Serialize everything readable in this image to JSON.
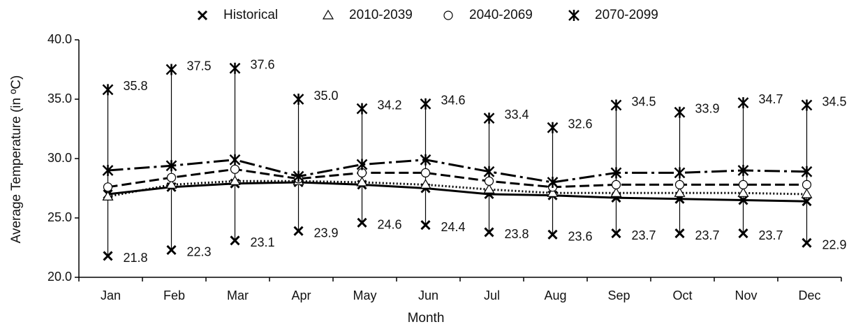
{
  "chart_data": {
    "type": "line",
    "x_label": "Month",
    "y_label": "Average Temperature (in ºC)",
    "categories": [
      "Jan",
      "Feb",
      "Mar",
      "Apr",
      "May",
      "Jun",
      "Jul",
      "Aug",
      "Sep",
      "Oct",
      "Nov",
      "Dec"
    ],
    "series": [
      {
        "name": "Historical",
        "color": "#000000",
        "marker": "x",
        "dash": "solid",
        "values": [
          27.0,
          27.6,
          27.9,
          28.0,
          27.8,
          27.5,
          27.0,
          26.9,
          26.7,
          26.6,
          26.5,
          26.4
        ]
      },
      {
        "name": "2010-2039",
        "color": "#000000",
        "marker": "triangle",
        "dash": "dotted",
        "values": [
          26.8,
          27.8,
          28.1,
          28.1,
          28.0,
          27.8,
          27.4,
          27.1,
          27.1,
          27.1,
          27.1,
          27.0
        ]
      },
      {
        "name": "2040-2069",
        "color": "#000000",
        "marker": "circle",
        "dash": "dashed",
        "values": [
          27.6,
          28.4,
          29.1,
          28.3,
          28.8,
          28.8,
          28.1,
          27.6,
          27.8,
          27.8,
          27.8,
          27.8
        ]
      },
      {
        "name": "2070-2099",
        "color": "#000000",
        "marker": "asterisk",
        "dash": "dashdot",
        "values": [
          29.0,
          29.4,
          29.9,
          28.5,
          29.5,
          29.9,
          28.9,
          28.0,
          28.8,
          28.8,
          29.0,
          28.9
        ]
      }
    ],
    "max": [
      35.8,
      37.5,
      37.6,
      35.0,
      34.2,
      34.6,
      33.4,
      32.6,
      34.5,
      33.9,
      34.7,
      34.5
    ],
    "max_labels": [
      "35.8",
      "37.5",
      "37.6",
      "35.0",
      "34.2",
      "34.6",
      "33.4",
      "32.6",
      "34.5",
      "33.9",
      "34.7",
      "34.5"
    ],
    "min": [
      21.8,
      22.3,
      23.1,
      23.9,
      24.6,
      24.4,
      23.8,
      23.6,
      23.7,
      23.7,
      23.7,
      22.9
    ],
    "min_labels": [
      "21.8",
      "22.3",
      "23.1",
      "23.9",
      "24.6",
      "24.4",
      "23.8",
      "23.6",
      "23.7",
      "23.7",
      "23.7",
      "22.9"
    ],
    "ylim": [
      20,
      40
    ],
    "yticks": [
      {
        "value": 20,
        "label": "20.0"
      },
      {
        "value": 25,
        "label": "25.0"
      },
      {
        "value": 30,
        "label": "30.0"
      },
      {
        "value": 35,
        "label": "35.0"
      },
      {
        "value": 40,
        "label": "40.0"
      }
    ],
    "legend": "top",
    "grid": false
  }
}
